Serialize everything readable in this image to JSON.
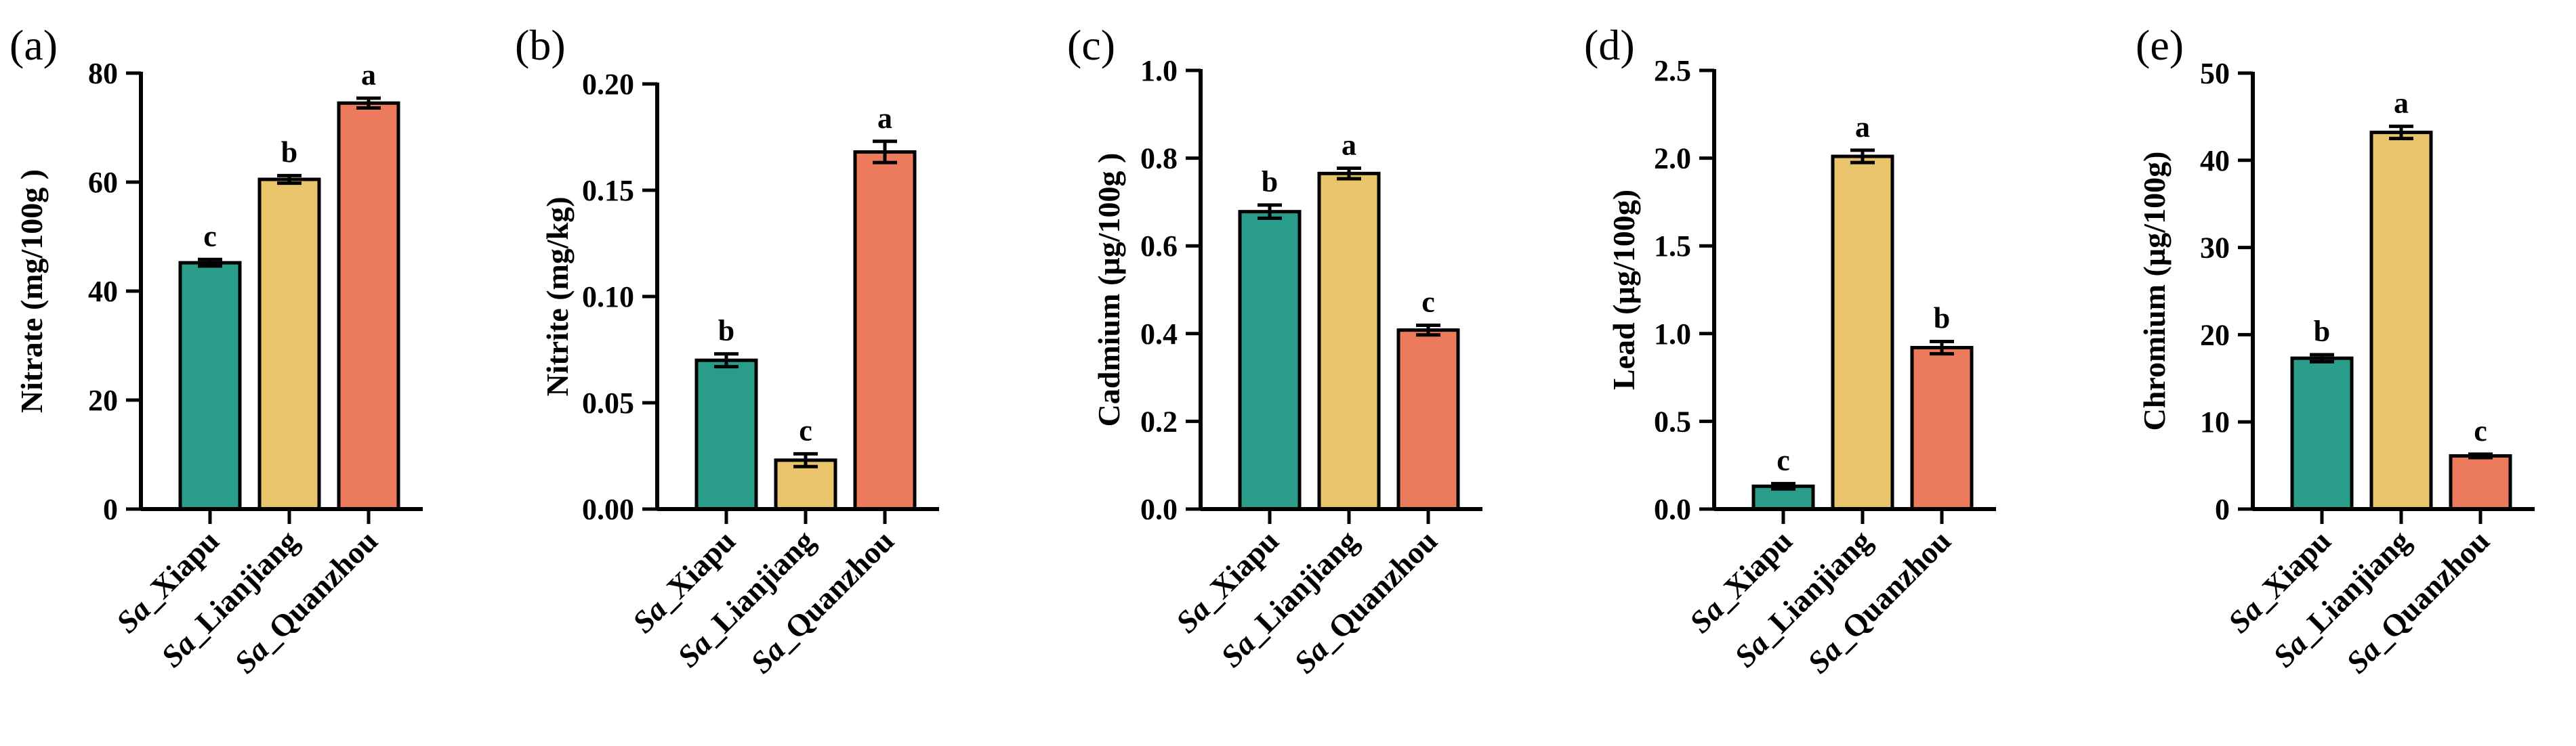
{
  "colors": {
    "Sa_Xiapu": "#2a9d8a",
    "Sa_Lianjiang": "#e9c46a",
    "Sa_Quanzhou": "#ec7a5c"
  },
  "chart_data": [
    {
      "type": "bar",
      "panel": "(a)",
      "ylabel": "Nitrate (mg/100g )",
      "categories": [
        "Sa_Xiapu",
        "Sa_Lianjiang",
        "Sa_Quanzhou"
      ],
      "values": [
        45.2,
        60.5,
        74.5
      ],
      "errors": [
        0.6,
        0.7,
        0.9
      ],
      "significance": [
        "c",
        "b",
        "a"
      ],
      "ylim": [
        0,
        80
      ],
      "yticks": [
        "0",
        "20",
        "40",
        "60",
        "80"
      ]
    },
    {
      "type": "bar",
      "panel": "(b)",
      "ylabel": "Nitrite (mg/kg)",
      "categories": [
        "Sa_Xiapu",
        "Sa_Lianjiang",
        "Sa_Quanzhou"
      ],
      "values": [
        0.07,
        0.023,
        0.168
      ],
      "errors": [
        0.003,
        0.003,
        0.005
      ],
      "significance": [
        "b",
        "c",
        "a"
      ],
      "ylim": [
        0,
        0.2
      ],
      "yticks": [
        "0.00",
        "0.05",
        "0.10",
        "0.15",
        "0.20"
      ]
    },
    {
      "type": "bar",
      "panel": "(c)",
      "ylabel": "Cadmium (µg/100g )",
      "categories": [
        "Sa_Xiapu",
        "Sa_Lianjiang",
        "Sa_Quanzhou"
      ],
      "values": [
        0.678,
        0.765,
        0.408
      ],
      "errors": [
        0.015,
        0.012,
        0.011
      ],
      "significance": [
        "b",
        "a",
        "c"
      ],
      "ylim": [
        0,
        1.0
      ],
      "yticks": [
        "0.0",
        "0.2",
        "0.4",
        "0.6",
        "0.8",
        "1.0"
      ]
    },
    {
      "type": "bar",
      "panel": "(d)",
      "ylabel": "Lead (µg/100g)",
      "categories": [
        "Sa_Xiapu",
        "Sa_Lianjiang",
        "Sa_Quanzhou"
      ],
      "values": [
        0.13,
        2.01,
        0.92
      ],
      "errors": [
        0.015,
        0.035,
        0.035
      ],
      "significance": [
        "c",
        "a",
        "b"
      ],
      "ylim": [
        0,
        2.5
      ],
      "yticks": [
        "0.0",
        "0.5",
        "1.0",
        "1.5",
        "2.0",
        "2.5"
      ]
    },
    {
      "type": "bar",
      "panel": "(e)",
      "ylabel": "Chromium (µg/100g)",
      "categories": [
        "Sa_Xiapu",
        "Sa_Lianjiang",
        "Sa_Quanzhou"
      ],
      "values": [
        17.3,
        43.2,
        6.1
      ],
      "errors": [
        0.4,
        0.7,
        0.2
      ],
      "significance": [
        "b",
        "a",
        "c"
      ],
      "ylim": [
        0,
        50
      ],
      "yticks": [
        "0",
        "10",
        "20",
        "30",
        "40",
        "50"
      ]
    }
  ]
}
